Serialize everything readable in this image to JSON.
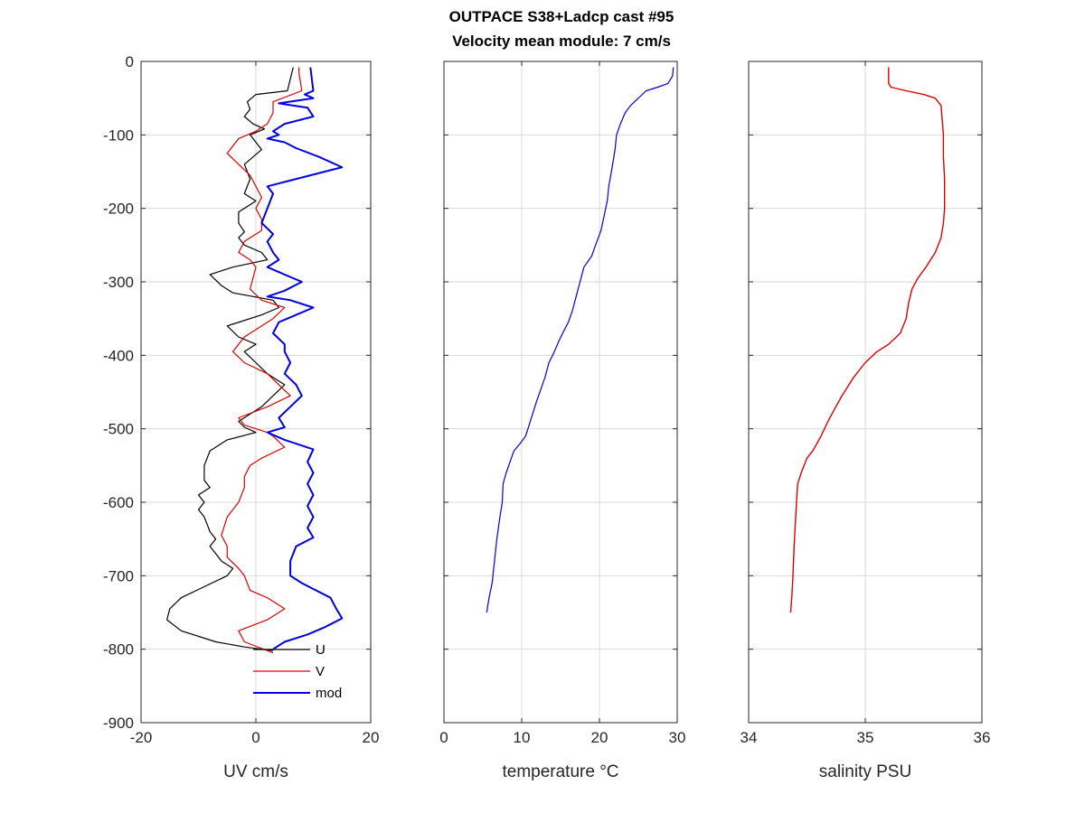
{
  "figure": {
    "title_line1": "OUTPACE S38+Ladcp cast #95",
    "title_line2": "Velocity mean module:  7 cm/s"
  },
  "colors": {
    "U": "#000000",
    "V": "#e00000",
    "mod": "#0000e0",
    "temperature": "#0000e0",
    "salinity": "#e00000"
  },
  "chart_data": [
    {
      "type": "line",
      "xlabel": "UV cm/s",
      "ylabel": "",
      "xlim": [
        -20,
        20
      ],
      "ylim": [
        -900,
        0
      ],
      "xticks": [
        "-20",
        "0",
        "20"
      ],
      "yticks": [
        "0",
        "-100",
        "-200",
        "-300",
        "-400",
        "-500",
        "-600",
        "-700",
        "-800",
        "-900"
      ],
      "grid": true,
      "legend_position": "bottom-right",
      "series": [
        {
          "name": "U",
          "points": [
            [
              6.5,
              -8
            ],
            [
              5.5,
              -40
            ],
            [
              0,
              -45
            ],
            [
              -1.5,
              -55
            ],
            [
              -1,
              -65
            ],
            [
              -2,
              -75
            ],
            [
              -0.5,
              -85
            ],
            [
              1.5,
              -92
            ],
            [
              -1,
              -100
            ],
            [
              1,
              -120
            ],
            [
              -2,
              -140
            ],
            [
              -1,
              -160
            ],
            [
              -2,
              -180
            ],
            [
              0,
              -190
            ],
            [
              -3,
              -205
            ],
            [
              -3,
              -220
            ],
            [
              -2,
              -232
            ],
            [
              -3,
              -240
            ],
            [
              -2,
              -250
            ],
            [
              1,
              -260
            ],
            [
              2,
              -270
            ],
            [
              -4,
              -280
            ],
            [
              -8,
              -290
            ],
            [
              -6,
              -305
            ],
            [
              -4,
              -315
            ],
            [
              3,
              -325
            ],
            [
              4,
              -335
            ],
            [
              1,
              -345
            ],
            [
              -5,
              -360
            ],
            [
              -3,
              -375
            ],
            [
              0,
              -385
            ],
            [
              -2,
              -395
            ],
            [
              0,
              -410
            ],
            [
              2,
              -425
            ],
            [
              5,
              -440
            ],
            [
              3,
              -455
            ],
            [
              1,
              -470
            ],
            [
              -3,
              -490
            ],
            [
              -2,
              -498
            ],
            [
              0,
              -505
            ],
            [
              -5,
              -515
            ],
            [
              -8,
              -530
            ],
            [
              -9,
              -550
            ],
            [
              -9,
              -570
            ],
            [
              -8,
              -580
            ],
            [
              -10,
              -590
            ],
            [
              -9,
              -600
            ],
            [
              -10,
              -610
            ],
            [
              -9,
              -620
            ],
            [
              -8,
              -640
            ],
            [
              -7,
              -650
            ],
            [
              -8,
              -660
            ],
            [
              -7,
              -670
            ],
            [
              -6,
              -680
            ],
            [
              -4,
              -690
            ],
            [
              -5,
              -700
            ],
            [
              -9,
              -715
            ],
            [
              -13,
              -730
            ],
            [
              -15,
              -745
            ],
            [
              -15.5,
              -760
            ],
            [
              -13,
              -775
            ],
            [
              -7,
              -790
            ],
            [
              -2,
              -797
            ],
            [
              3,
              -802
            ]
          ]
        },
        {
          "name": "V",
          "points": [
            [
              7.5,
              -8
            ],
            [
              7.5,
              -15
            ],
            [
              8,
              -40
            ],
            [
              3,
              -55
            ],
            [
              3,
              -70
            ],
            [
              2,
              -85
            ],
            [
              0,
              -95
            ],
            [
              -3,
              -105
            ],
            [
              -5,
              -125
            ],
            [
              -3,
              -140
            ],
            [
              -1,
              -155
            ],
            [
              0,
              -170
            ],
            [
              1,
              -185
            ],
            [
              0,
              -200
            ],
            [
              1,
              -215
            ],
            [
              1,
              -230
            ],
            [
              -2,
              -245
            ],
            [
              -3,
              -260
            ],
            [
              -1,
              -270
            ],
            [
              0,
              -280
            ],
            [
              -0.5,
              -295
            ],
            [
              -1,
              -310
            ],
            [
              1,
              -325
            ],
            [
              5,
              -335
            ],
            [
              3,
              -350
            ],
            [
              0,
              -365
            ],
            [
              -2,
              -375
            ],
            [
              -3,
              -385
            ],
            [
              -4,
              -395
            ],
            [
              -2,
              -410
            ],
            [
              2,
              -425
            ],
            [
              4,
              -440
            ],
            [
              6,
              -455
            ],
            [
              2,
              -470
            ],
            [
              -3,
              -485
            ],
            [
              -2,
              -495
            ],
            [
              2,
              -505
            ],
            [
              3,
              -510
            ],
            [
              5,
              -525
            ],
            [
              1,
              -540
            ],
            [
              -1,
              -550
            ],
            [
              -2,
              -565
            ],
            [
              -2,
              -580
            ],
            [
              -3,
              -600
            ],
            [
              -5,
              -620
            ],
            [
              -6,
              -645
            ],
            [
              -5,
              -660
            ],
            [
              -5,
              -675
            ],
            [
              -3,
              -690
            ],
            [
              -2,
              -700
            ],
            [
              -1,
              -720
            ],
            [
              2,
              -730
            ],
            [
              5,
              -745
            ],
            [
              2,
              -760
            ],
            [
              -3,
              -775
            ],
            [
              -2,
              -790
            ],
            [
              3,
              -805
            ]
          ]
        },
        {
          "name": "mod",
          "points": [
            [
              9.5,
              -8
            ],
            [
              10,
              -40
            ],
            [
              8.5,
              -45
            ],
            [
              10,
              -50
            ],
            [
              4,
              -57
            ],
            [
              9,
              -63
            ],
            [
              10,
              -75
            ],
            [
              5,
              -85
            ],
            [
              3,
              -95
            ],
            [
              4,
              -100
            ],
            [
              2,
              -105
            ],
            [
              5,
              -110
            ],
            [
              7,
              -118
            ],
            [
              11,
              -130
            ],
            [
              15,
              -144
            ],
            [
              7,
              -160
            ],
            [
              2,
              -170
            ],
            [
              3,
              -180
            ],
            [
              2,
              -200
            ],
            [
              1,
              -220
            ],
            [
              3,
              -235
            ],
            [
              2,
              -245
            ],
            [
              3,
              -260
            ],
            [
              4,
              -270
            ],
            [
              2,
              -280
            ],
            [
              5,
              -290
            ],
            [
              8,
              -300
            ],
            [
              5,
              -312
            ],
            [
              2,
              -320
            ],
            [
              6,
              -325
            ],
            [
              10,
              -335
            ],
            [
              7,
              -345
            ],
            [
              4,
              -355
            ],
            [
              3,
              -370
            ],
            [
              5,
              -385
            ],
            [
              5,
              -395
            ],
            [
              6,
              -410
            ],
            [
              5,
              -425
            ],
            [
              7,
              -440
            ],
            [
              8,
              -455
            ],
            [
              6,
              -470
            ],
            [
              4,
              -485
            ],
            [
              5,
              -498
            ],
            [
              2,
              -505
            ],
            [
              5,
              -515
            ],
            [
              10,
              -528
            ],
            [
              9,
              -545
            ],
            [
              10,
              -560
            ],
            [
              9,
              -575
            ],
            [
              10,
              -590
            ],
            [
              9,
              -605
            ],
            [
              10,
              -620
            ],
            [
              9,
              -635
            ],
            [
              10,
              -648
            ],
            [
              7,
              -660
            ],
            [
              6,
              -680
            ],
            [
              6,
              -700
            ],
            [
              8,
              -710
            ],
            [
              13,
              -730
            ],
            [
              14,
              -745
            ],
            [
              15,
              -758
            ],
            [
              12,
              -770
            ],
            [
              9,
              -780
            ],
            [
              5,
              -790
            ],
            [
              3,
              -800
            ]
          ]
        }
      ]
    },
    {
      "type": "line",
      "xlabel": "temperature °C",
      "ylabel": "",
      "xlim": [
        0,
        30
      ],
      "ylim": [
        -900,
        0
      ],
      "xticks": [
        "0",
        "10",
        "20",
        "30"
      ],
      "grid": true,
      "series": [
        {
          "points": [
            [
              29.5,
              -8
            ],
            [
              29.4,
              -20
            ],
            [
              28.8,
              -30
            ],
            [
              27.5,
              -35
            ],
            [
              26,
              -40
            ],
            [
              25,
              -50
            ],
            [
              24,
              -60
            ],
            [
              23.3,
              -70
            ],
            [
              22.7,
              -85
            ],
            [
              22.2,
              -100
            ],
            [
              22,
              -120
            ],
            [
              21.7,
              -140
            ],
            [
              21.2,
              -170
            ],
            [
              21,
              -190
            ],
            [
              20.6,
              -210
            ],
            [
              20.2,
              -230
            ],
            [
              19.5,
              -250
            ],
            [
              19,
              -265
            ],
            [
              18,
              -280
            ],
            [
              17.5,
              -300
            ],
            [
              17,
              -320
            ],
            [
              16.5,
              -340
            ],
            [
              16,
              -355
            ],
            [
              15.5,
              -365
            ],
            [
              14.8,
              -380
            ],
            [
              14.2,
              -395
            ],
            [
              13.5,
              -410
            ],
            [
              13,
              -430
            ],
            [
              12.5,
              -445
            ],
            [
              12,
              -460
            ],
            [
              11.4,
              -480
            ],
            [
              10.8,
              -500
            ],
            [
              10.5,
              -510
            ],
            [
              9.8,
              -520
            ],
            [
              9,
              -530
            ],
            [
              8.5,
              -545
            ],
            [
              8,
              -560
            ],
            [
              7.6,
              -575
            ],
            [
              7.5,
              -600
            ],
            [
              7.2,
              -620
            ],
            [
              6.8,
              -650
            ],
            [
              6.5,
              -680
            ],
            [
              6.2,
              -710
            ],
            [
              5.8,
              -730
            ],
            [
              5.5,
              -750
            ]
          ]
        }
      ]
    },
    {
      "type": "line",
      "xlabel": "salinity PSU",
      "ylabel": "",
      "xlim": [
        34,
        36
      ],
      "ylim": [
        -900,
        0
      ],
      "xticks": [
        "34",
        "35",
        "36"
      ],
      "grid": true,
      "series": [
        {
          "points": [
            [
              35.2,
              -8
            ],
            [
              35.2,
              -30
            ],
            [
              35.22,
              -35
            ],
            [
              35.35,
              -40
            ],
            [
              35.5,
              -45
            ],
            [
              35.6,
              -50
            ],
            [
              35.65,
              -60
            ],
            [
              35.66,
              -80
            ],
            [
              35.67,
              -100
            ],
            [
              35.67,
              -130
            ],
            [
              35.68,
              -160
            ],
            [
              35.68,
              -200
            ],
            [
              35.67,
              -220
            ],
            [
              35.65,
              -240
            ],
            [
              35.6,
              -260
            ],
            [
              35.52,
              -280
            ],
            [
              35.45,
              -295
            ],
            [
              35.4,
              -310
            ],
            [
              35.37,
              -330
            ],
            [
              35.35,
              -350
            ],
            [
              35.3,
              -370
            ],
            [
              35.2,
              -385
            ],
            [
              35.1,
              -395
            ],
            [
              35.0,
              -410
            ],
            [
              34.9,
              -430
            ],
            [
              34.8,
              -455
            ],
            [
              34.73,
              -475
            ],
            [
              34.68,
              -490
            ],
            [
              34.62,
              -510
            ],
            [
              34.55,
              -530
            ],
            [
              34.5,
              -540
            ],
            [
              34.45,
              -560
            ],
            [
              34.42,
              -575
            ],
            [
              34.41,
              -600
            ],
            [
              34.4,
              -630
            ],
            [
              34.39,
              -660
            ],
            [
              34.38,
              -700
            ],
            [
              34.37,
              -730
            ],
            [
              34.36,
              -750
            ]
          ]
        }
      ]
    }
  ]
}
